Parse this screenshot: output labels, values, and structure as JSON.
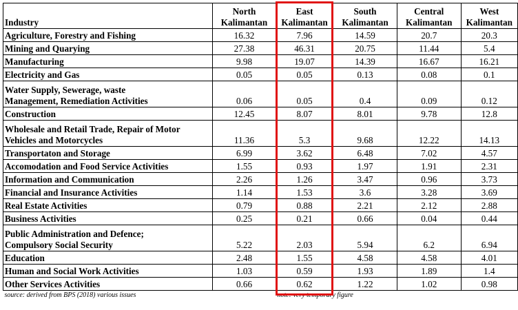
{
  "header": {
    "industry_label": "Industry",
    "regions": [
      {
        "line1": "North",
        "line2": "Kalimantan"
      },
      {
        "line1": "East",
        "line2": "Kalimantan"
      },
      {
        "line1": "South",
        "line2": "Kalimantan"
      },
      {
        "line1": "Central",
        "line2": "Kalimantan"
      },
      {
        "line1": "West",
        "line2": "Kalimantan"
      }
    ]
  },
  "rows": [
    {
      "name": [
        "Agriculture, Forestry and Fishing"
      ],
      "values": [
        "16.32",
        "7.96",
        "14.59",
        "20.7",
        "20.3"
      ]
    },
    {
      "name": [
        "Mining and Quarying"
      ],
      "values": [
        "27.38",
        "46.31",
        "20.75",
        "11.44",
        "5.4"
      ]
    },
    {
      "name": [
        "Manufacturing"
      ],
      "values": [
        "9.98",
        "19.07",
        "14.39",
        "16.67",
        "16.21"
      ]
    },
    {
      "name": [
        "Electricity and Gas"
      ],
      "values": [
        "0.05",
        "0.05",
        "0.13",
        "0.08",
        "0.1"
      ]
    },
    {
      "name": [
        "Water Supply, Sewerage, waste",
        "Management, Remediation Activities"
      ],
      "values": [
        "0.06",
        "0.05",
        "0.4",
        "0.09",
        "0.12"
      ]
    },
    {
      "name": [
        "Construction"
      ],
      "values": [
        "12.45",
        "8.07",
        "8.01",
        "9.78",
        "12.8"
      ]
    },
    {
      "name": [
        "Wholesale and Retail Trade, Repair of Motor",
        "Vehicles and Motorcycles"
      ],
      "values": [
        "11.36",
        "5.3",
        "9.68",
        "12.22",
        "14.13"
      ]
    },
    {
      "name": [
        "Transportaton and Storage"
      ],
      "values": [
        "6.99",
        "3.62",
        "6.48",
        "7.02",
        "4.57"
      ]
    },
    {
      "name": [
        "Accomodation and Food Service Activities"
      ],
      "values": [
        "1.55",
        "0.93",
        "1.97",
        "1.91",
        "2.31"
      ]
    },
    {
      "name": [
        "Information and Communication"
      ],
      "values": [
        "2.26",
        "1.26",
        "3.47",
        "0.96",
        "3.73"
      ]
    },
    {
      "name": [
        "Financial and Insurance Activities"
      ],
      "values": [
        "1.14",
        "1.53",
        "3.6",
        "3.28",
        "3.69"
      ]
    },
    {
      "name": [
        "Real Estate Activities"
      ],
      "values": [
        "0.79",
        "0.88",
        "2.21",
        "2.12",
        "2.88"
      ]
    },
    {
      "name": [
        "Business Activities"
      ],
      "values": [
        "0.25",
        "0.21",
        "0.66",
        "0.04",
        "0.44"
      ]
    },
    {
      "name": [
        "Public Administration and Defence;",
        "Compulsory Social Security"
      ],
      "values": [
        "5.22",
        "2.03",
        "5.94",
        "6.2",
        "6.94"
      ]
    },
    {
      "name": [
        "Education"
      ],
      "values": [
        "2.48",
        "1.55",
        "4.58",
        "4.58",
        "4.01"
      ]
    },
    {
      "name": [
        "Human and Social Work Activities"
      ],
      "values": [
        "1.03",
        "0.59",
        "1.93",
        "1.89",
        "1.4"
      ]
    },
    {
      "name": [
        "Other Services Activities"
      ],
      "values": [
        "0.66",
        "0.62",
        "1.22",
        "1.02",
        "0.98"
      ]
    }
  ],
  "footnotes": {
    "source": "source: derived from BPS (2018) various issues",
    "note": "note: very temporary figure"
  },
  "highlight": {
    "column": "East Kalimantan",
    "color": "#e01010"
  }
}
